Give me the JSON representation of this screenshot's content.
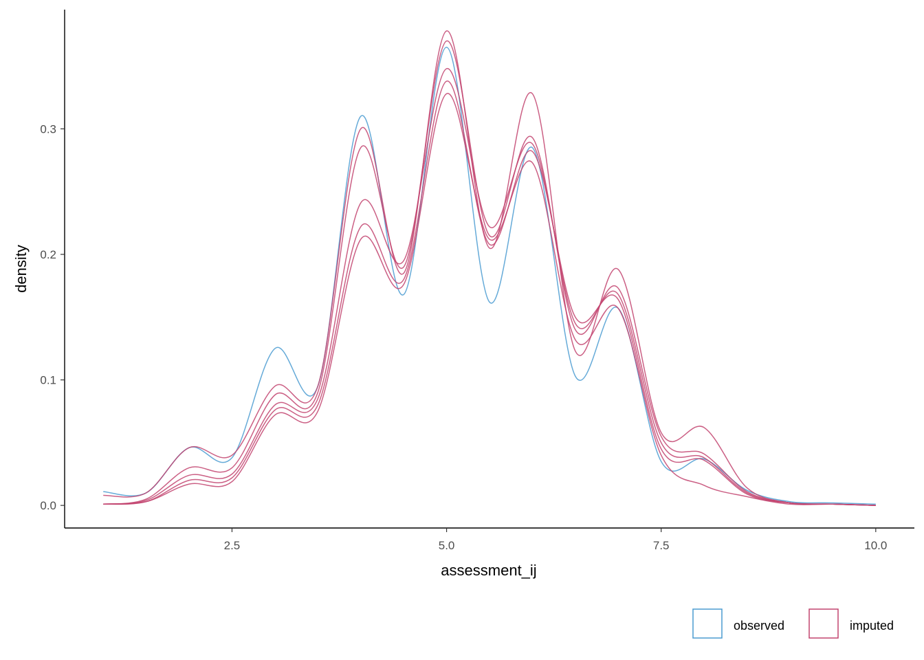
{
  "chart_data": {
    "type": "line",
    "title": "",
    "xlabel": "assessment_ij",
    "ylabel": "density",
    "xlim": [
      0.55,
      10.45
    ],
    "ylim": [
      -0.018,
      0.395
    ],
    "x_ticks": [
      2.5,
      5.0,
      7.5,
      10.0
    ],
    "x_tick_labels": [
      "2.5",
      "5.0",
      "7.5",
      "10.0"
    ],
    "y_ticks": [
      0.0,
      0.1,
      0.2,
      0.3
    ],
    "y_tick_labels": [
      "0.0",
      "0.1",
      "0.2",
      "0.3"
    ],
    "grid": false,
    "legend_position": "bottom-right",
    "legend": [
      {
        "label": "observed",
        "color": "#4a9bd1"
      },
      {
        "label": "imputed",
        "color": "#c2436e"
      }
    ],
    "x": [
      1.0,
      1.5,
      2.0,
      2.5,
      3.0,
      3.5,
      4.0,
      4.5,
      5.0,
      5.5,
      6.0,
      6.5,
      7.0,
      7.5,
      8.0,
      8.5,
      9.0,
      9.5,
      10.0
    ],
    "series": [
      {
        "name": "observed",
        "color": "#4a9bd1",
        "values": [
          0.011,
          0.01,
          0.046,
          0.038,
          0.125,
          0.095,
          0.31,
          0.168,
          0.365,
          0.162,
          0.285,
          0.103,
          0.157,
          0.035,
          0.037,
          0.012,
          0.003,
          0.002,
          0.001
        ]
      },
      {
        "group": "imputed",
        "color": "#c2436e",
        "values": [
          0.008,
          0.01,
          0.046,
          0.04,
          0.095,
          0.095,
          0.3,
          0.185,
          0.378,
          0.205,
          0.328,
          0.123,
          0.188,
          0.058,
          0.062,
          0.014,
          0.002,
          0.001,
          0.0
        ]
      },
      {
        "group": "imputed",
        "color": "#c2436e",
        "values": [
          0.001,
          0.005,
          0.03,
          0.03,
          0.088,
          0.09,
          0.285,
          0.19,
          0.37,
          0.215,
          0.293,
          0.14,
          0.173,
          0.055,
          0.041,
          0.011,
          0.002,
          0.001,
          0.0
        ]
      },
      {
        "group": "imputed",
        "color": "#c2436e",
        "values": [
          0.001,
          0.004,
          0.024,
          0.025,
          0.08,
          0.085,
          0.241,
          0.195,
          0.348,
          0.222,
          0.288,
          0.145,
          0.168,
          0.05,
          0.038,
          0.01,
          0.002,
          0.001,
          0.0
        ]
      },
      {
        "group": "imputed",
        "color": "#c2436e",
        "values": [
          0.001,
          0.003,
          0.02,
          0.022,
          0.076,
          0.08,
          0.222,
          0.18,
          0.338,
          0.208,
          0.282,
          0.15,
          0.164,
          0.045,
          0.036,
          0.009,
          0.002,
          0.001,
          0.0
        ]
      },
      {
        "group": "imputed",
        "color": "#c2436e",
        "values": [
          0.001,
          0.003,
          0.017,
          0.019,
          0.072,
          0.075,
          0.212,
          0.176,
          0.328,
          0.212,
          0.273,
          0.132,
          0.157,
          0.04,
          0.016,
          0.007,
          0.001,
          0.001,
          0.0
        ]
      }
    ]
  }
}
